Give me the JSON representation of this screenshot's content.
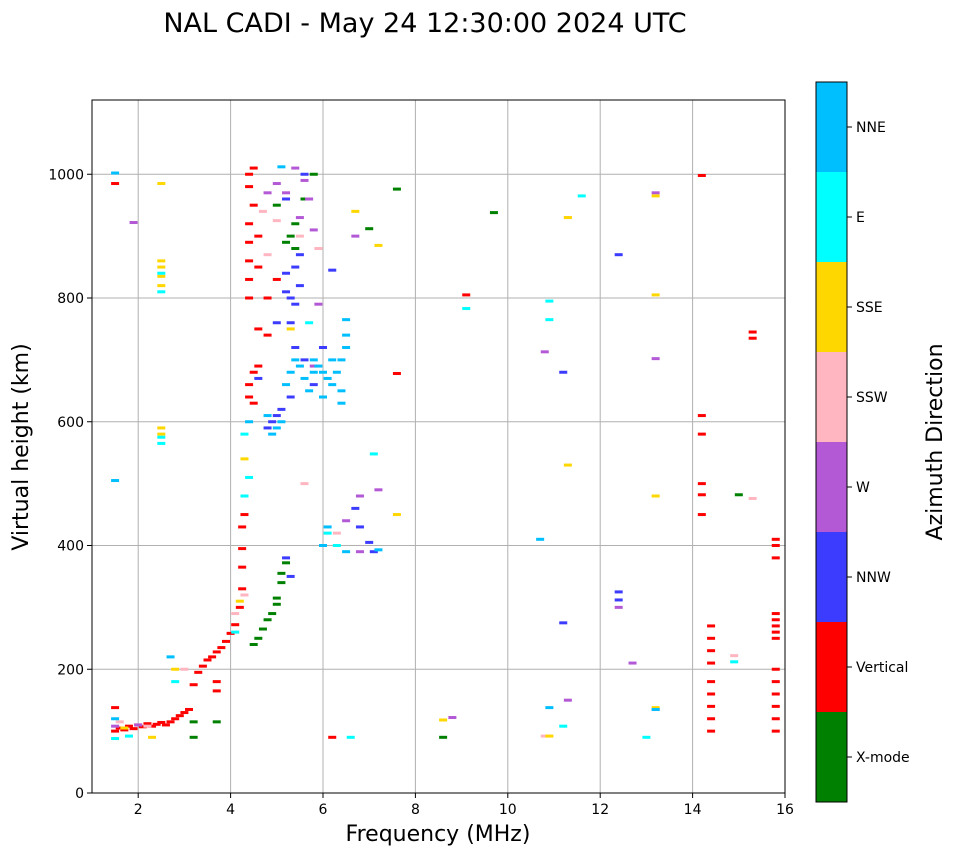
{
  "chart_data": {
    "type": "scatter",
    "title": "NAL CADI - May 24 12:30:00 2024 UTC",
    "xlabel": "Frequency (MHz)",
    "ylabel": "Virtual height (km)",
    "xlim": [
      1,
      16
    ],
    "ylim": [
      0,
      1120
    ],
    "x_ticks": [
      2,
      4,
      6,
      8,
      10,
      12,
      14,
      16
    ],
    "y_ticks": [
      0,
      200,
      400,
      600,
      800,
      1000
    ],
    "grid": true,
    "colorbar": {
      "title": "Azimuth Direction",
      "categories": [
        {
          "name": "X-mode",
          "color": "#008000"
        },
        {
          "name": "Vertical",
          "color": "#ff0000"
        },
        {
          "name": "NNW",
          "color": "#3c3cff"
        },
        {
          "name": "W",
          "color": "#b459d6"
        },
        {
          "name": "SSW",
          "color": "#ffb6c1"
        },
        {
          "name": "SSE",
          "color": "#ffd700"
        },
        {
          "name": "E",
          "color": "#00ffff"
        },
        {
          "name": "NNE",
          "color": "#00bfff"
        }
      ]
    },
    "series": [
      {
        "name": "Vertical",
        "points": [
          [
            1.5,
            100
          ],
          [
            1.6,
            105
          ],
          [
            1.7,
            102
          ],
          [
            1.8,
            108
          ],
          [
            1.9,
            104
          ],
          [
            2.0,
            110
          ],
          [
            2.1,
            107
          ],
          [
            2.2,
            112
          ],
          [
            2.3,
            108
          ],
          [
            2.4,
            111
          ],
          [
            2.5,
            114
          ],
          [
            2.6,
            110
          ],
          [
            2.7,
            115
          ],
          [
            2.8,
            120
          ],
          [
            2.9,
            125
          ],
          [
            3.0,
            130
          ],
          [
            3.1,
            135
          ],
          [
            3.2,
            175
          ],
          [
            3.3,
            195
          ],
          [
            3.4,
            205
          ],
          [
            3.5,
            215
          ],
          [
            3.6,
            220
          ],
          [
            3.7,
            228
          ],
          [
            3.8,
            235
          ],
          [
            3.9,
            245
          ],
          [
            4.0,
            258
          ],
          [
            4.1,
            272
          ],
          [
            4.2,
            300
          ],
          [
            4.25,
            330
          ],
          [
            4.25,
            365
          ],
          [
            4.25,
            395
          ],
          [
            4.25,
            430
          ],
          [
            4.3,
            450
          ],
          [
            1.5,
            138
          ],
          [
            1.5,
            985
          ],
          [
            3.7,
            165
          ],
          [
            3.7,
            180
          ],
          [
            4.4,
            640
          ],
          [
            4.4,
            660
          ],
          [
            4.5,
            680
          ],
          [
            4.5,
            630
          ],
          [
            4.6,
            690
          ],
          [
            4.4,
            800
          ],
          [
            4.4,
            830
          ],
          [
            4.4,
            860
          ],
          [
            4.4,
            890
          ],
          [
            4.4,
            920
          ],
          [
            4.5,
            950
          ],
          [
            4.4,
            980
          ],
          [
            4.4,
            1000
          ],
          [
            4.5,
            1010
          ],
          [
            4.6,
            850
          ],
          [
            4.6,
            900
          ],
          [
            4.8,
            740
          ],
          [
            4.8,
            800
          ],
          [
            5.0,
            830
          ],
          [
            4.6,
            750
          ],
          [
            6.2,
            90
          ],
          [
            7.6,
            678
          ],
          [
            9.1,
            805
          ],
          [
            14.2,
            610
          ],
          [
            14.2,
            580
          ],
          [
            14.2,
            500
          ],
          [
            14.2,
            482
          ],
          [
            14.2,
            450
          ],
          [
            14.2,
            998
          ],
          [
            15.8,
            410
          ],
          [
            15.8,
            400
          ],
          [
            15.8,
            380
          ],
          [
            15.8,
            290
          ],
          [
            15.8,
            280
          ],
          [
            15.8,
            270
          ],
          [
            15.8,
            260
          ],
          [
            15.8,
            250
          ],
          [
            15.3,
            745
          ],
          [
            15.3,
            735
          ],
          [
            14.4,
            270
          ],
          [
            14.4,
            250
          ],
          [
            14.4,
            230
          ],
          [
            14.4,
            210
          ],
          [
            14.4,
            180
          ],
          [
            14.4,
            160
          ],
          [
            14.4,
            140
          ],
          [
            14.4,
            120
          ],
          [
            14.4,
            100
          ],
          [
            15.8,
            200
          ],
          [
            15.8,
            180
          ],
          [
            15.8,
            160
          ],
          [
            15.8,
            140
          ],
          [
            15.8,
            120
          ],
          [
            15.8,
            100
          ]
        ]
      },
      {
        "name": "X-mode",
        "points": [
          [
            4.5,
            240
          ],
          [
            4.6,
            250
          ],
          [
            4.7,
            265
          ],
          [
            4.8,
            280
          ],
          [
            4.9,
            290
          ],
          [
            5.0,
            305
          ],
          [
            5.0,
            315
          ],
          [
            5.1,
            340
          ],
          [
            5.1,
            355
          ],
          [
            5.2,
            372
          ],
          [
            3.2,
            90
          ],
          [
            3.2,
            115
          ],
          [
            3.7,
            115
          ],
          [
            5.3,
            900
          ],
          [
            5.4,
            920
          ],
          [
            5.2,
            890
          ],
          [
            5.4,
            880
          ],
          [
            5.0,
            950
          ],
          [
            5.6,
            960
          ],
          [
            5.8,
            1000
          ],
          [
            7.0,
            912
          ],
          [
            7.6,
            976
          ],
          [
            9.7,
            938
          ],
          [
            8.6,
            90
          ],
          [
            15.0,
            482
          ]
        ]
      },
      {
        "name": "NNW",
        "points": [
          [
            5.2,
            380
          ],
          [
            5.3,
            350
          ],
          [
            5.2,
            810
          ],
          [
            5.3,
            800
          ],
          [
            5.4,
            790
          ],
          [
            5.5,
            820
          ],
          [
            5.2,
            840
          ],
          [
            5.3,
            760
          ],
          [
            5.4,
            850
          ],
          [
            5.5,
            870
          ],
          [
            4.9,
            600
          ],
          [
            5.0,
            610
          ],
          [
            5.1,
            620
          ],
          [
            4.8,
            590
          ],
          [
            5.3,
            640
          ],
          [
            5.6,
            700
          ],
          [
            5.8,
            660
          ],
          [
            6.0,
            720
          ],
          [
            6.2,
            845
          ],
          [
            6.7,
            460
          ],
          [
            6.8,
            430
          ],
          [
            7.0,
            405
          ],
          [
            7.1,
            390
          ],
          [
            11.2,
            680
          ],
          [
            11.2,
            275
          ],
          [
            12.4,
            870
          ],
          [
            12.4,
            325
          ],
          [
            12.4,
            312
          ],
          [
            5.6,
            1000
          ],
          [
            5.4,
            720
          ],
          [
            5.0,
            760
          ],
          [
            4.6,
            670
          ],
          [
            5.2,
            960
          ]
        ]
      },
      {
        "name": "W",
        "points": [
          [
            5.6,
            990
          ],
          [
            5.7,
            960
          ],
          [
            5.8,
            910
          ],
          [
            5.5,
            930
          ],
          [
            6.7,
            900
          ],
          [
            6.5,
            440
          ],
          [
            6.8,
            480
          ],
          [
            7.2,
            490
          ],
          [
            8.8,
            122
          ],
          [
            10.8,
            713
          ],
          [
            11.3,
            150
          ],
          [
            12.4,
            300
          ],
          [
            12.7,
            210
          ],
          [
            13.2,
            970
          ],
          [
            13.2,
            702
          ],
          [
            13.2,
            135
          ],
          [
            5.0,
            985
          ],
          [
            5.2,
            970
          ],
          [
            4.8,
            970
          ],
          [
            5.4,
            1010
          ],
          [
            5.9,
            790
          ],
          [
            6.8,
            390
          ],
          [
            1.5,
            108
          ],
          [
            2.0,
            110
          ],
          [
            5.8,
            690
          ],
          [
            1.9,
            922
          ]
        ]
      },
      {
        "name": "SSW",
        "points": [
          [
            5.0,
            925
          ],
          [
            5.5,
            900
          ],
          [
            5.9,
            880
          ],
          [
            4.8,
            870
          ],
          [
            4.7,
            940
          ],
          [
            10.8,
            92
          ],
          [
            14.9,
            222
          ],
          [
            15.3,
            476
          ],
          [
            5.6,
            500
          ],
          [
            4.3,
            320
          ],
          [
            3.0,
            200
          ],
          [
            4.1,
            290
          ],
          [
            11.3,
            930
          ],
          [
            6.3,
            420
          ],
          [
            2.2,
            108
          ],
          [
            1.6,
            115
          ]
        ]
      },
      {
        "name": "SSE",
        "points": [
          [
            2.5,
            820
          ],
          [
            2.5,
            835
          ],
          [
            2.5,
            850
          ],
          [
            2.5,
            860
          ],
          [
            2.5,
            590
          ],
          [
            2.5,
            580
          ],
          [
            2.5,
            985
          ],
          [
            4.3,
            540
          ],
          [
            5.3,
            750
          ],
          [
            6.7,
            940
          ],
          [
            7.2,
            885
          ],
          [
            7.6,
            450
          ],
          [
            8.6,
            118
          ],
          [
            10.9,
            92
          ],
          [
            11.3,
            530
          ],
          [
            11.3,
            930
          ],
          [
            13.2,
            965
          ],
          [
            13.2,
            805
          ],
          [
            13.2,
            480
          ],
          [
            13.2,
            138
          ],
          [
            2.3,
            90
          ],
          [
            2.8,
            200
          ],
          [
            1.7,
            105
          ],
          [
            4.2,
            310
          ]
        ]
      },
      {
        "name": "E",
        "points": [
          [
            2.5,
            565
          ],
          [
            2.5,
            575
          ],
          [
            2.5,
            810
          ],
          [
            2.5,
            840
          ],
          [
            4.3,
            580
          ],
          [
            4.4,
            510
          ],
          [
            4.3,
            480
          ],
          [
            6.1,
            420
          ],
          [
            6.3,
            400
          ],
          [
            6.6,
            90
          ],
          [
            7.1,
            548
          ],
          [
            9.1,
            783
          ],
          [
            10.9,
            795
          ],
          [
            10.9,
            765
          ],
          [
            11.2,
            108
          ],
          [
            11.6,
            965
          ],
          [
            13.0,
            90
          ],
          [
            14.9,
            212
          ],
          [
            5.7,
            760
          ],
          [
            4.1,
            260
          ],
          [
            2.8,
            180
          ],
          [
            1.5,
            88
          ],
          [
            1.8,
            92
          ]
        ]
      },
      {
        "name": "NNE",
        "points": [
          [
            1.5,
            1002
          ],
          [
            1.5,
            505
          ],
          [
            4.9,
            580
          ],
          [
            5.0,
            590
          ],
          [
            5.1,
            600
          ],
          [
            4.8,
            610
          ],
          [
            5.2,
            660
          ],
          [
            5.3,
            680
          ],
          [
            5.4,
            700
          ],
          [
            5.5,
            690
          ],
          [
            5.6,
            670
          ],
          [
            5.7,
            650
          ],
          [
            5.8,
            700
          ],
          [
            5.9,
            690
          ],
          [
            6.0,
            680
          ],
          [
            6.1,
            670
          ],
          [
            6.2,
            660
          ],
          [
            6.3,
            680
          ],
          [
            6.4,
            700
          ],
          [
            6.5,
            720
          ],
          [
            6.5,
            740
          ],
          [
            6.5,
            765
          ],
          [
            6.4,
            650
          ],
          [
            6.4,
            630
          ],
          [
            6.0,
            640
          ],
          [
            5.8,
            680
          ],
          [
            6.2,
            700
          ],
          [
            6.0,
            400
          ],
          [
            6.5,
            390
          ],
          [
            6.1,
            430
          ],
          [
            10.7,
            410
          ],
          [
            10.9,
            138
          ],
          [
            13.2,
            135
          ],
          [
            4.4,
            600
          ],
          [
            5.1,
            1012
          ],
          [
            7.2,
            393
          ],
          [
            1.5,
            120
          ],
          [
            2.7,
            220
          ]
        ]
      }
    ]
  }
}
